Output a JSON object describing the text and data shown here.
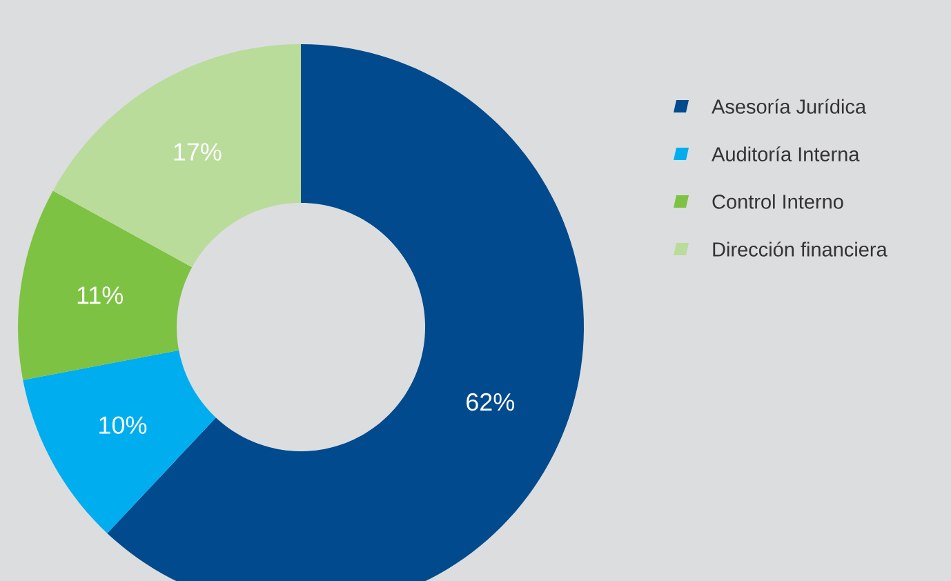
{
  "chart_data": {
    "type": "donut",
    "categories": [
      "Asesoría Jurídica",
      "Auditoría Interna",
      "Control Interno",
      "Dirección financiera"
    ],
    "values": [
      62,
      10,
      11,
      17
    ],
    "value_labels": [
      "62%",
      "10%",
      "11%",
      "17%"
    ],
    "colors": [
      "#004a8d",
      "#00adef",
      "#7dc242",
      "#b9dc9a"
    ],
    "legend": "right"
  }
}
